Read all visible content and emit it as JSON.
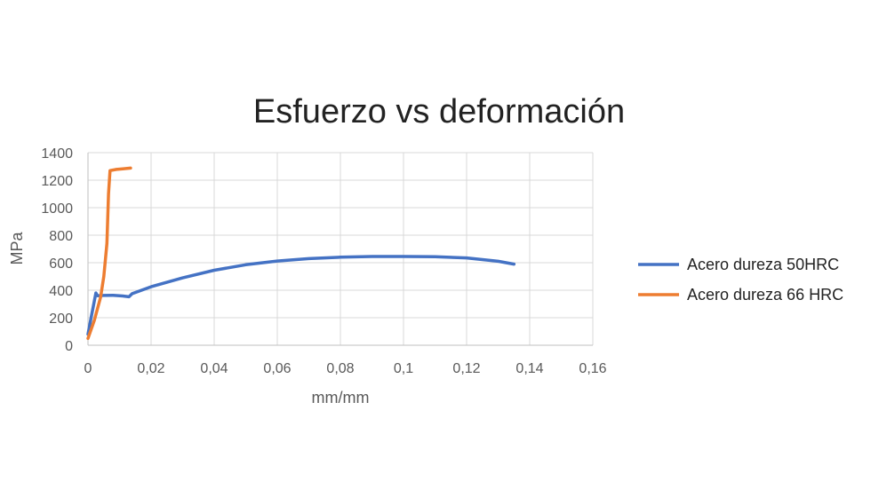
{
  "chart_data": {
    "type": "line",
    "title": "Esfuerzo vs deformación",
    "xlabel": "mm/mm",
    "ylabel": "MPa",
    "xlim": [
      0,
      0.16
    ],
    "ylim": [
      0,
      1400
    ],
    "x_ticks": [
      "0",
      "0,02",
      "0,04",
      "0,06",
      "0,08",
      "0,1",
      "0,12",
      "0,14",
      "0,16"
    ],
    "y_ticks": [
      "0",
      "200",
      "400",
      "600",
      "800",
      "1000",
      "1200",
      "1400"
    ],
    "grid": "vertical and horizontal",
    "legend_position": "right",
    "series": [
      {
        "name": "Acero dureza 50HRC",
        "color": "#4472c4",
        "points": [
          [
            0,
            80
          ],
          [
            0.001,
            200
          ],
          [
            0.0025,
            380
          ],
          [
            0.003,
            360
          ],
          [
            0.005,
            362
          ],
          [
            0.008,
            363
          ],
          [
            0.011,
            358
          ],
          [
            0.013,
            352
          ],
          [
            0.014,
            375
          ],
          [
            0.02,
            425
          ],
          [
            0.03,
            490
          ],
          [
            0.04,
            545
          ],
          [
            0.05,
            585
          ],
          [
            0.06,
            612
          ],
          [
            0.07,
            630
          ],
          [
            0.08,
            640
          ],
          [
            0.09,
            645
          ],
          [
            0.1,
            645
          ],
          [
            0.11,
            643
          ],
          [
            0.12,
            635
          ],
          [
            0.13,
            610
          ],
          [
            0.135,
            590
          ]
        ]
      },
      {
        "name": "Acero dureza 66 HRC",
        "color": "#ed7d31",
        "points": [
          [
            0,
            50
          ],
          [
            0.002,
            180
          ],
          [
            0.004,
            350
          ],
          [
            0.005,
            500
          ],
          [
            0.006,
            740
          ],
          [
            0.0065,
            1100
          ],
          [
            0.007,
            1270
          ],
          [
            0.009,
            1278
          ],
          [
            0.011,
            1282
          ],
          [
            0.0135,
            1288
          ]
        ]
      }
    ]
  }
}
